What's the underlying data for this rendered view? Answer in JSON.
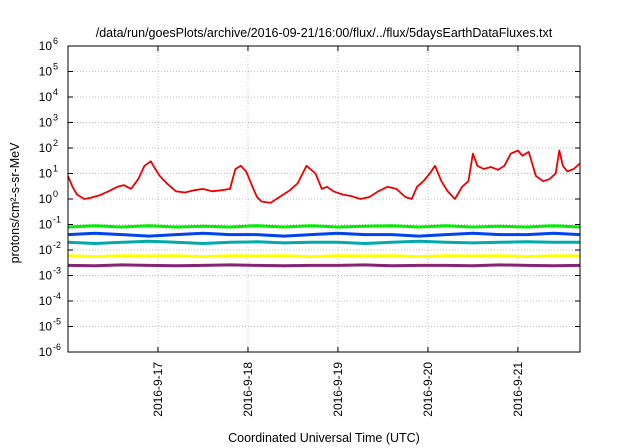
{
  "chart_data": {
    "type": "line",
    "title": "/data/run/goesPlots/archive/2016-09-21/16:00/flux/../flux/5daysEarthDataFluxes.txt",
    "xlabel": "Coordinated Universal Time (UTC)",
    "ylabel": "protons/cm²-s-sr-MeV",
    "yscale": "log",
    "ylim": [
      1e-06,
      1000000.0
    ],
    "xlim": [
      0,
      5.69
    ],
    "x_ticks": [
      {
        "x": 1,
        "label": "2016-9-17"
      },
      {
        "x": 2,
        "label": "2016-9-18"
      },
      {
        "x": 3,
        "label": "2016-9-19"
      },
      {
        "x": 4,
        "label": "2016-9-20"
      },
      {
        "x": 5,
        "label": "2016-9-21"
      }
    ],
    "y_ticks": [
      {
        "value": 1e-06,
        "base": "10",
        "exp": "-6"
      },
      {
        "value": 1e-05,
        "base": "10",
        "exp": "-5"
      },
      {
        "value": 0.0001,
        "base": "10",
        "exp": "-4"
      },
      {
        "value": 0.001,
        "base": "10",
        "exp": "-3"
      },
      {
        "value": 0.01,
        "base": "10",
        "exp": "-2"
      },
      {
        "value": 0.1,
        "base": "10",
        "exp": "-1"
      },
      {
        "value": 1,
        "base": "10",
        "exp": "0"
      },
      {
        "value": 10.0,
        "base": "10",
        "exp": "1"
      },
      {
        "value": 100.0,
        "base": "10",
        "exp": "2"
      },
      {
        "value": 1000.0,
        "base": "10",
        "exp": "3"
      },
      {
        "value": 10000.0,
        "base": "10",
        "exp": "4"
      },
      {
        "value": 100000.0,
        "base": "10",
        "exp": "5"
      },
      {
        "value": 1000000.0,
        "base": "10",
        "exp": "6"
      }
    ],
    "grid": true,
    "legend": false,
    "series": [
      {
        "color": "#ee0000",
        "x": [
          0.0,
          0.05,
          0.1,
          0.18,
          0.25,
          0.35,
          0.45,
          0.55,
          0.62,
          0.7,
          0.78,
          0.85,
          0.92,
          0.97,
          1.02,
          1.1,
          1.2,
          1.3,
          1.4,
          1.5,
          1.6,
          1.7,
          1.8,
          1.86,
          1.92,
          1.98,
          2.05,
          2.1,
          2.15,
          2.25,
          2.35,
          2.45,
          2.55,
          2.65,
          2.75,
          2.82,
          2.88,
          2.95,
          3.05,
          3.15,
          3.25,
          3.35,
          3.45,
          3.55,
          3.65,
          3.75,
          3.82,
          3.88,
          3.95,
          4.02,
          4.08,
          4.15,
          4.22,
          4.3,
          4.38,
          4.45,
          4.5,
          4.55,
          4.62,
          4.7,
          4.78,
          4.85,
          4.92,
          5.0,
          5.05,
          5.12,
          5.2,
          5.28,
          5.35,
          5.42,
          5.46,
          5.5,
          5.55,
          5.62,
          5.69
        ],
        "values": [
          8,
          3,
          1.5,
          1,
          1.1,
          1.4,
          2,
          3,
          3.5,
          2.5,
          6,
          20,
          30,
          15,
          8,
          4,
          2,
          1.8,
          2.2,
          2.5,
          2,
          2.2,
          2.5,
          15,
          20,
          12,
          3,
          1.2,
          0.8,
          0.7,
          1.2,
          2,
          4,
          20,
          10,
          2.5,
          3,
          2,
          1.5,
          1.3,
          1,
          1.2,
          2,
          3,
          2.5,
          1.2,
          1,
          3,
          5,
          10,
          20,
          5,
          2,
          1,
          3,
          5,
          60,
          20,
          15,
          18,
          14,
          20,
          60,
          80,
          50,
          70,
          8,
          5,
          6,
          10,
          80,
          20,
          12,
          15,
          25
        ]
      },
      {
        "color": "#00ee00",
        "x": [
          0.0,
          0.3,
          0.6,
          0.9,
          1.2,
          1.5,
          1.8,
          2.1,
          2.4,
          2.7,
          3.0,
          3.3,
          3.6,
          3.9,
          4.2,
          4.5,
          4.8,
          5.1,
          5.4,
          5.69
        ],
        "values": [
          0.08,
          0.09,
          0.08,
          0.09,
          0.08,
          0.085,
          0.08,
          0.09,
          0.08,
          0.09,
          0.08,
          0.085,
          0.09,
          0.08,
          0.09,
          0.08,
          0.085,
          0.08,
          0.09,
          0.08
        ]
      },
      {
        "color": "#0044ee",
        "x": [
          0.0,
          0.3,
          0.6,
          0.9,
          1.2,
          1.5,
          1.8,
          2.1,
          2.4,
          2.7,
          3.0,
          3.3,
          3.6,
          3.9,
          4.2,
          4.5,
          4.8,
          5.1,
          5.4,
          5.69
        ],
        "values": [
          0.04,
          0.045,
          0.04,
          0.035,
          0.04,
          0.045,
          0.04,
          0.04,
          0.035,
          0.04,
          0.045,
          0.04,
          0.04,
          0.035,
          0.04,
          0.045,
          0.04,
          0.04,
          0.045,
          0.04
        ]
      },
      {
        "color": "#00aaaa",
        "x": [
          0.0,
          0.3,
          0.6,
          0.9,
          1.2,
          1.5,
          1.8,
          2.1,
          2.4,
          2.7,
          3.0,
          3.3,
          3.6,
          3.9,
          4.2,
          4.5,
          4.8,
          5.1,
          5.4,
          5.69
        ],
        "values": [
          0.02,
          0.018,
          0.02,
          0.022,
          0.02,
          0.018,
          0.02,
          0.021,
          0.019,
          0.02,
          0.02,
          0.018,
          0.02,
          0.022,
          0.02,
          0.019,
          0.02,
          0.021,
          0.02,
          0.02
        ]
      },
      {
        "color": "#ffff00",
        "x": [
          0.0,
          0.3,
          0.6,
          0.9,
          1.2,
          1.5,
          1.8,
          2.1,
          2.4,
          2.7,
          3.0,
          3.3,
          3.6,
          3.9,
          4.2,
          4.5,
          4.8,
          5.1,
          5.4,
          5.69
        ],
        "values": [
          0.006,
          0.0055,
          0.006,
          0.0058,
          0.006,
          0.0055,
          0.006,
          0.0058,
          0.006,
          0.0055,
          0.006,
          0.0058,
          0.006,
          0.0055,
          0.006,
          0.0058,
          0.006,
          0.0055,
          0.006,
          0.0058
        ]
      },
      {
        "color": "#882277",
        "x": [
          0.0,
          0.3,
          0.6,
          0.9,
          1.2,
          1.5,
          1.8,
          2.1,
          2.4,
          2.7,
          3.0,
          3.3,
          3.6,
          3.9,
          4.2,
          4.5,
          4.8,
          5.1,
          5.4,
          5.69
        ],
        "values": [
          0.0025,
          0.0024,
          0.0026,
          0.0025,
          0.0024,
          0.0025,
          0.0026,
          0.0025,
          0.0024,
          0.0025,
          0.0025,
          0.0026,
          0.0024,
          0.0025,
          0.0025,
          0.0024,
          0.0026,
          0.0025,
          0.0024,
          0.0025
        ]
      }
    ]
  }
}
